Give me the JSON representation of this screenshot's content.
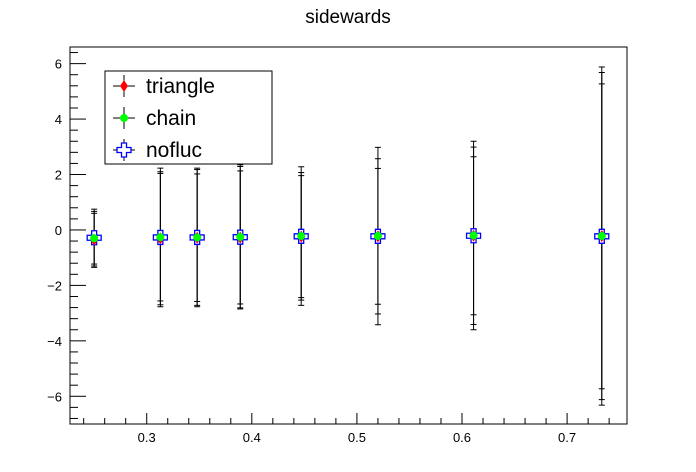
{
  "chart_data": {
    "type": "scatter",
    "title": "sidewards",
    "xlabel": "",
    "ylabel": "",
    "xlim": [
      0.227,
      0.757
    ],
    "ylim": [
      -7.0,
      6.6
    ],
    "xticks": [
      0.3,
      0.4,
      0.5,
      0.6,
      0.7
    ],
    "xtick_labels": [
      "0.3",
      "0.4",
      "0.5",
      "0.6",
      "0.7"
    ],
    "yticks": [
      -6,
      -4,
      -2,
      0,
      2,
      4,
      6
    ],
    "ytick_labels": [
      "−6",
      "−4",
      "−2",
      "0",
      "2",
      "4",
      "6"
    ],
    "grid": false,
    "legend_position": "top-left",
    "series": [
      {
        "name": "triangle",
        "color": "#ff0000",
        "marker": "diamond",
        "x": [
          0.25,
          0.313,
          0.348,
          0.389,
          0.447,
          0.52,
          0.611,
          0.733
        ],
        "y": [
          -0.35,
          -0.3,
          -0.28,
          -0.27,
          -0.24,
          -0.23,
          -0.21,
          -0.22
        ],
        "yerr": [
          0.95,
          2.4,
          2.3,
          2.4,
          2.2,
          2.8,
          3.2,
          5.9
        ]
      },
      {
        "name": "chain",
        "color": "#00ff00",
        "marker": "circle",
        "x": [
          0.25,
          0.313,
          0.348,
          0.389,
          0.447,
          0.52,
          0.611,
          0.733
        ],
        "y": [
          -0.3,
          -0.26,
          -0.27,
          -0.25,
          -0.22,
          -0.22,
          -0.2,
          -0.22
        ],
        "yerr": [
          1.05,
          2.3,
          2.45,
          2.6,
          2.5,
          3.2,
          3.4,
          6.1
        ]
      },
      {
        "name": "nofluc",
        "color": "#0000ff",
        "marker": "open-cross",
        "x": [
          0.25,
          0.313,
          0.348,
          0.389,
          0.447,
          0.52,
          0.611,
          0.733
        ],
        "y": [
          -0.28,
          -0.27,
          -0.27,
          -0.26,
          -0.23,
          -0.23,
          -0.21,
          -0.23
        ],
        "yerr": [
          0.95,
          2.5,
          2.5,
          2.55,
          2.3,
          2.45,
          2.85,
          5.5
        ]
      }
    ]
  }
}
